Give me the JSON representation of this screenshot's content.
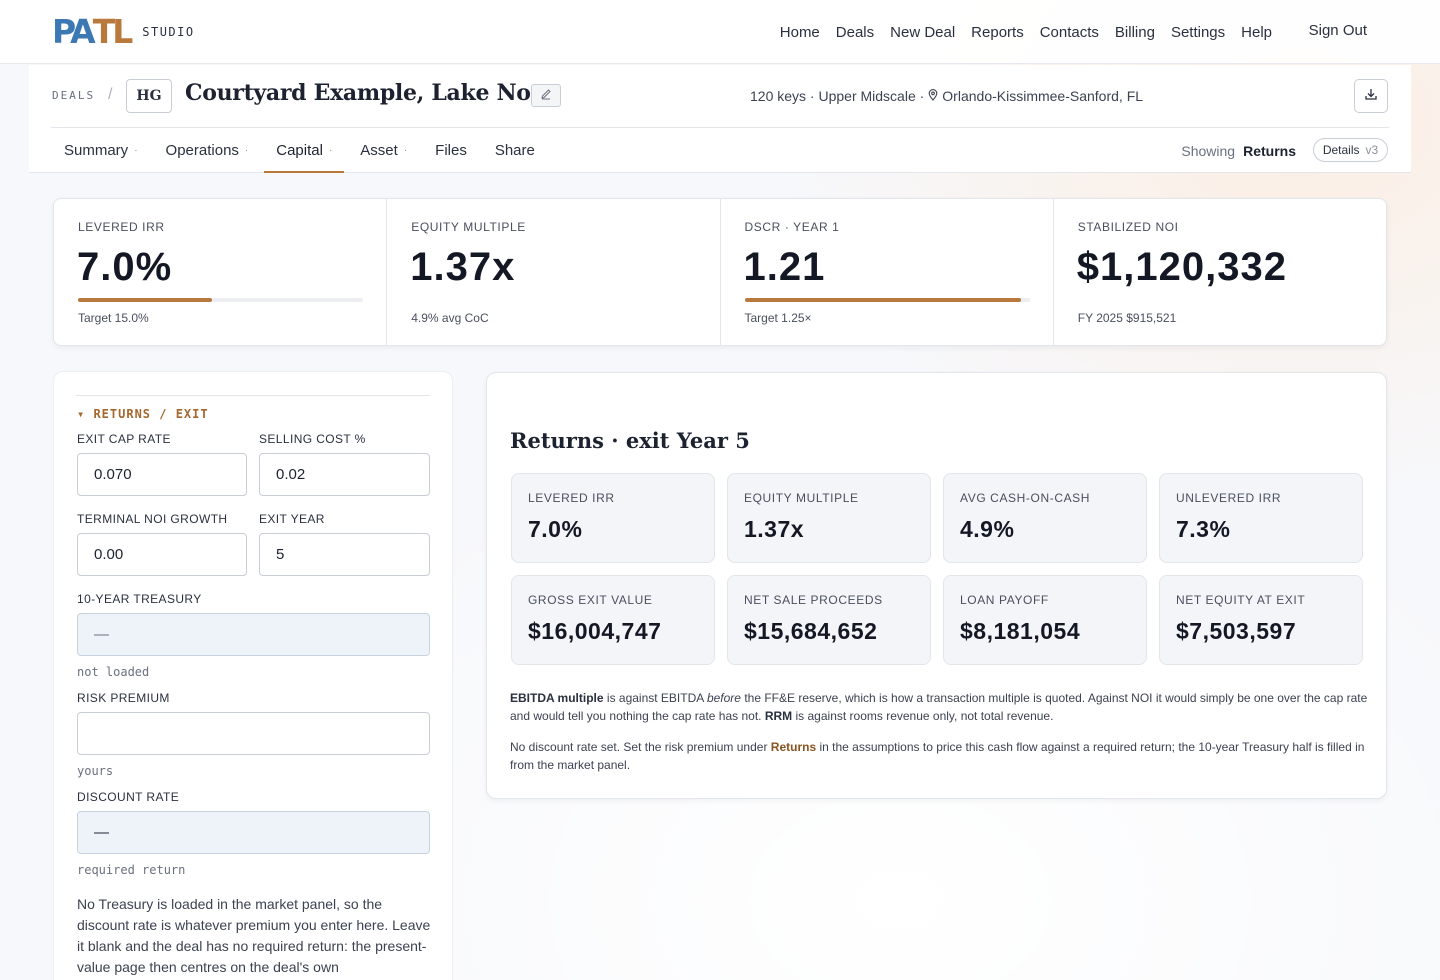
{
  "brand": {
    "mark_left": "PA",
    "mark_right": "TL",
    "sub": "STUDIO",
    "mark_blue": "#3c78b4",
    "mark_tan": "#b9783c"
  },
  "nav": {
    "links": [
      "Home",
      "Deals",
      "New Deal",
      "Reports",
      "Contacts",
      "Billing",
      "Settings",
      "Help"
    ],
    "sign_out": "Sign Out"
  },
  "deal": {
    "crumb": "DEALS",
    "crumb_sep": "/",
    "badge": "HG",
    "title": "Courtyard Example, Lake Nona",
    "edit_icon": "pencil-icon",
    "meta": "120 keys · Upper Midscale ·",
    "location": "Orlando-Kissimmee-Sanford, FL",
    "download_icon": "download-icon"
  },
  "tabs": [
    {
      "label": "Summary",
      "dot": "·"
    },
    {
      "label": "Operations",
      "dot": "·"
    },
    {
      "label": "Capital",
      "dot": "·",
      "active": true
    },
    {
      "label": "Asset",
      "dot": "·"
    },
    {
      "label": "Files",
      "dot": ""
    },
    {
      "label": "Share",
      "dot": ""
    }
  ],
  "view": {
    "showing_label": "Showing",
    "showing_value": "Returns",
    "details_label": "Details",
    "details_version": "v3"
  },
  "kpis": [
    {
      "label": "LEVERED IRR",
      "value": "7.0%",
      "sub": "Target 15.0%",
      "progress": 0.47
    },
    {
      "label": "EQUITY MULTIPLE",
      "value": "1.37x",
      "sub": "4.9% avg CoC"
    },
    {
      "label": "DSCR · YEAR 1",
      "value": "1.21",
      "sub": "Target 1.25×",
      "progress": 0.97
    },
    {
      "label": "STABILIZED NOI",
      "value": "$1,120,332",
      "sub": "FY 2025 $915,521"
    }
  ],
  "form": {
    "section": "▾ RETURNS / EXIT",
    "exit_cap_label": "EXIT CAP RATE",
    "exit_cap_value": "0.070",
    "selling_cost_label": "SELLING COST %",
    "selling_cost_value": "0.02",
    "terminal_growth_label": "TERMINAL NOI GROWTH",
    "terminal_growth_value": "0.00",
    "exit_year_label": "EXIT YEAR",
    "exit_year_value": "5",
    "treasury_label": "10-YEAR TREASURY",
    "treasury_value": "—",
    "treasury_hint": "not loaded",
    "risk_label": "RISK PREMIUM",
    "risk_value": "",
    "risk_hint": "yours",
    "discount_label": "DISCOUNT RATE",
    "discount_value": "—",
    "discount_hint": "required return",
    "note": "No Treasury is loaded in the market panel, so the discount rate is whatever premium you enter here. Leave it blank and the deal has no required return: the present-value page then centres on the deal's own"
  },
  "returns": {
    "title": "Returns · exit Year 5",
    "cards": [
      {
        "label": "LEVERED IRR",
        "value": "7.0%"
      },
      {
        "label": "EQUITY MULTIPLE",
        "value": "1.37x"
      },
      {
        "label": "AVG CASH-ON-CASH",
        "value": "4.9%"
      },
      {
        "label": "UNLEVERED IRR",
        "value": "7.3%"
      },
      {
        "label": "GROSS EXIT VALUE",
        "value": "$16,004,747"
      },
      {
        "label": "NET SALE PROCEEDS",
        "value": "$15,684,652"
      },
      {
        "label": "LOAN PAYOFF",
        "value": "$8,181,054"
      },
      {
        "label": "NET EQUITY AT EXIT",
        "value": "$7,503,597"
      }
    ],
    "note1_b1": "EBITDA multiple",
    "note1_t1": " is against EBITDA ",
    "note1_i": "before",
    "note1_t2": " the FF&E reserve, which is how a transaction multiple is quoted. Against NOI it would simply be one over the cap rate and would tell you nothing the cap rate has not. ",
    "note1_b2": "RRM",
    "note1_t3": " is against rooms revenue only, not total revenue.",
    "note2_t1": "No discount rate set. Set the risk premium under ",
    "note2_link": "Returns",
    "note2_t2": " in the assumptions to price this cash flow against a required return; the 10-year Treasury half is filled in from the market panel."
  },
  "colors": {
    "accent": "#b9783c",
    "text": "#1d2230",
    "panel_bg": "#ffffff"
  }
}
